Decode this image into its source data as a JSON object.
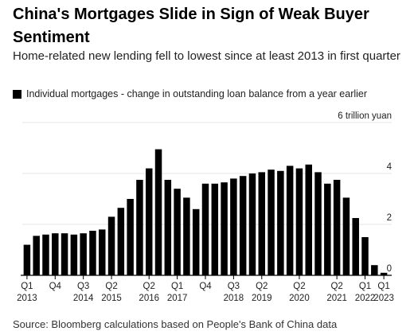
{
  "title": "China's Mortgages Slide in Sign of Weak Buyer Sentiment",
  "subtitle": "Home-related new lending fell to lowest since at least 2013 in first quarter",
  "source": "Source: Bloomberg calculations based on People's Bank of China data",
  "colors": {
    "bar": "#000000",
    "gridline": "#e6e6e6",
    "axis": "#000000",
    "text": "#222222"
  },
  "chart_data": {
    "type": "bar",
    "title": "China's Mortgages Slide in Sign of Weak Buyer Sentiment",
    "subtitle": "Home-related new lending fell to lowest since at least 2013 in first quarter",
    "series": [
      {
        "name": "Individual mortgages - change in outstanding loan balance from a year earlier",
        "values": [
          1.2,
          1.55,
          1.6,
          1.65,
          1.65,
          1.6,
          1.65,
          1.75,
          1.8,
          2.3,
          2.65,
          3.0,
          3.75,
          4.2,
          4.95,
          3.75,
          3.4,
          3.05,
          2.6,
          3.6,
          3.6,
          3.65,
          3.8,
          3.9,
          4.0,
          4.05,
          4.15,
          4.1,
          4.3,
          4.2,
          4.35,
          4.05,
          3.6,
          3.75,
          3.05,
          2.25,
          1.5,
          0.4,
          0.1
        ]
      }
    ],
    "categories": [
      "Q1 2013",
      "Q2 2013",
      "Q3 2013",
      "Q4 2013",
      "Q1 2014",
      "Q2 2014",
      "Q3 2014",
      "Q4 2014",
      "Q1 2015",
      "Q2 2015",
      "Q3 2015",
      "Q4 2015",
      "Q1 2016",
      "Q2 2016",
      "Q3 2016",
      "Q4 2016",
      "Q1 2017",
      "Q2 2017",
      "Q3 2017",
      "Q4 2017",
      "Q1 2018",
      "Q2 2018",
      "Q3 2018",
      "Q4 2018",
      "Q1 2019",
      "Q2 2019",
      "Q3 2019",
      "Q4 2019",
      "Q1 2020",
      "Q2 2020",
      "Q3 2020",
      "Q4 2020",
      "Q1 2021",
      "Q2 2021",
      "Q3 2021",
      "Q4 2021",
      "Q1 2022",
      "Q4 2022",
      "Q1 2023"
    ],
    "x_tick_labels": [
      {
        "index": 0,
        "quarter": "Q1",
        "year": "2013"
      },
      {
        "index": 3,
        "quarter": "Q4",
        "year": ""
      },
      {
        "index": 6,
        "quarter": "Q3",
        "year": "2014"
      },
      {
        "index": 9,
        "quarter": "Q2",
        "year": "2015"
      },
      {
        "index": 13,
        "quarter": "Q2",
        "year": "2016"
      },
      {
        "index": 16,
        "quarter": "Q1",
        "year": "2017"
      },
      {
        "index": 19,
        "quarter": "Q4",
        "year": ""
      },
      {
        "index": 22,
        "quarter": "Q3",
        "year": "2018"
      },
      {
        "index": 25,
        "quarter": "Q2",
        "year": "2019"
      },
      {
        "index": 29,
        "quarter": "Q2",
        "year": "2020"
      },
      {
        "index": 33,
        "quarter": "Q2",
        "year": "2021"
      },
      {
        "index": 36,
        "quarter": "Q1",
        "year": "2022"
      },
      {
        "index": 38,
        "quarter": "Q1",
        "year": "2023"
      }
    ],
    "y_ticks": [
      {
        "value": 0,
        "label": "0"
      },
      {
        "value": 2,
        "label": "2"
      },
      {
        "value": 4,
        "label": "4"
      },
      {
        "value": 6,
        "label": "6 trillion yuan"
      }
    ],
    "ylim": [
      0,
      6
    ],
    "grid": true,
    "legend": "top-left"
  }
}
